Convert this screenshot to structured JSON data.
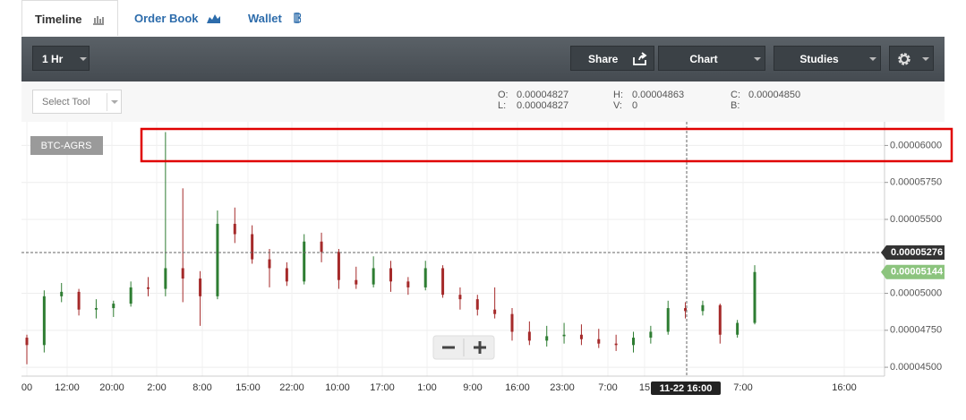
{
  "tabs": [
    "Timeline",
    "Order Book",
    "Wallet"
  ],
  "toolbar": {
    "interval": "1 Hr",
    "share": "Share",
    "chart": "Chart",
    "studies": "Studies"
  },
  "select_tool": "Select Tool",
  "readout": {
    "open": {
      "label": "O:",
      "value": "0.00004827"
    },
    "low": {
      "label": "L:",
      "value": "0.00004827"
    },
    "high": {
      "label": "H:",
      "value": "0.00004863"
    },
    "volume": {
      "label": "V:",
      "value": "0"
    },
    "close": {
      "label": "C:",
      "value": "0.00004850"
    },
    "bid": {
      "label": "B:"
    }
  },
  "chart_data": {
    "type": "candlestick",
    "symbol": "BTC-AGRS",
    "xticks": [
      "00",
      "12:00",
      "20:00",
      "2:00",
      "8:00",
      "15:00",
      "22:00",
      "10:00",
      "17:00",
      "1:00",
      "9:00",
      "16:00",
      "23:00",
      "7:00",
      "15",
      "7:00",
      "16:00"
    ],
    "crosshair_x_label": "11-22 16:00",
    "open": [
      4.7e-05,
      4.65e-05,
      4.98e-05,
      5.01e-05,
      4.89e-05,
      4.9e-05,
      4.93e-05,
      5.04e-05,
      5.03e-05,
      5.17e-05,
      5.1e-05,
      4.98e-05,
      5.47e-05,
      5.4e-05,
      5.23e-05,
      5.17e-05,
      5.08e-05,
      5.35e-05,
      5.28e-05,
      5.09e-05,
      5.06e-05,
      5.17e-05,
      5.08e-05,
      5.04e-05,
      5.17e-05,
      4.99e-05,
      4.96e-05,
      4.89e-05,
      4.86e-05,
      4.74e-05,
      4.68e-05,
      4.71e-05,
      4.72e-05,
      4.69e-05,
      4.66e-05,
      4.65e-05,
      4.7e-05,
      4.74e-05,
      4.9e-05,
      4.88e-05,
      4.92e-05,
      4.72e-05,
      4.8e-05
    ],
    "high": [
      4.72e-05,
      5.02e-05,
      5.07e-05,
      5.03e-05,
      4.96e-05,
      4.95e-05,
      5.08e-05,
      5.11e-05,
      6.09e-05,
      5.71e-05,
      5.15e-05,
      5.56e-05,
      5.58e-05,
      5.46e-05,
      5.3e-05,
      5.21e-05,
      5.4e-05,
      5.41e-05,
      5.3e-05,
      5.18e-05,
      5.25e-05,
      5.22e-05,
      5.11e-05,
      5.22e-05,
      5.19e-05,
      5.04e-05,
      4.99e-05,
      5.04e-05,
      4.9e-05,
      4.81e-05,
      4.78e-05,
      4.8e-05,
      4.79e-05,
      4.76e-05,
      4.72e-05,
      4.74e-05,
      4.78e-05,
      4.95e-05,
      4.94e-05,
      4.95e-05,
      4.93e-05,
      4.82e-05,
      5.19e-05
    ],
    "low": [
      4.52e-05,
      4.6e-05,
      4.94e-05,
      4.85e-05,
      4.83e-05,
      4.84e-05,
      4.91e-05,
      4.98e-05,
      4.98e-05,
      4.94e-05,
      4.78e-05,
      4.96e-05,
      5.34e-05,
      5.2e-05,
      5.04e-05,
      5.05e-05,
      5.06e-05,
      5.21e-05,
      5.03e-05,
      5.03e-05,
      5.04e-05,
      5.01e-05,
      4.99e-05,
      5.02e-05,
      4.97e-05,
      4.89e-05,
      4.85e-05,
      4.83e-05,
      4.68e-05,
      4.65e-05,
      4.64e-05,
      4.66e-05,
      4.65e-05,
      4.63e-05,
      4.61e-05,
      4.6e-05,
      4.66e-05,
      4.72e-05,
      4.83e-05,
      4.85e-05,
      4.66e-05,
      4.7e-05,
      4.79e-05
    ],
    "close": [
      4.65e-05,
      4.98e-05,
      5.01e-05,
      4.89e-05,
      4.9e-05,
      4.93e-05,
      5.04e-05,
      5.03e-05,
      5.17e-05,
      5.1e-05,
      4.98e-05,
      5.47e-05,
      5.4e-05,
      5.23e-05,
      5.17e-05,
      5.08e-05,
      5.35e-05,
      5.28e-05,
      5.09e-05,
      5.06e-05,
      5.17e-05,
      5.08e-05,
      5.04e-05,
      5.17e-05,
      4.99e-05,
      4.96e-05,
      4.89e-05,
      4.86e-05,
      4.74e-05,
      4.68e-05,
      4.71e-05,
      4.72e-05,
      4.69e-05,
      4.66e-05,
      4.65e-05,
      4.7e-05,
      4.74e-05,
      4.9e-05,
      4.88e-05,
      4.92e-05,
      4.72e-05,
      4.8e-05,
      5.144e-05
    ],
    "up_color": "#2e7d32",
    "down_color": "#a52a2a",
    "ylim": [
      4.44e-05,
      6.16e-05
    ],
    "yticks": [
      {
        "value": 6e-05,
        "label": "0.00006000"
      },
      {
        "value": 5.75e-05,
        "label": "0.00005750"
      },
      {
        "value": 5.5e-05,
        "label": "0.00005500"
      },
      {
        "value": 5e-05,
        "label": "0.00005000"
      },
      {
        "value": 4.75e-05,
        "label": "0.00004750"
      },
      {
        "value": 4.5e-05,
        "label": "0.00004500"
      }
    ],
    "grid": true,
    "crosshair_price": {
      "value": 5.276e-05,
      "label": "0.00005276"
    },
    "last_price": {
      "value": 5.144e-05,
      "label": "0.00005144"
    }
  }
}
